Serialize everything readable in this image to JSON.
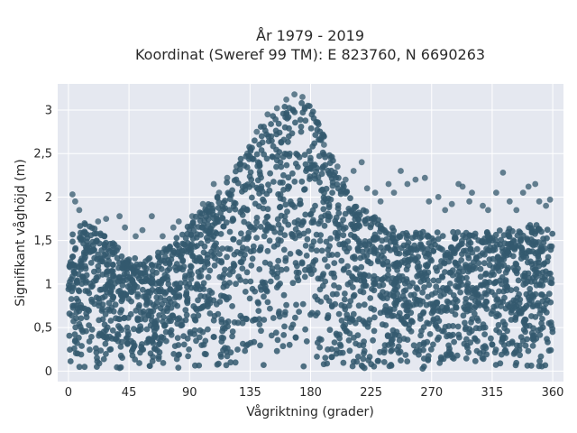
{
  "chart_data": {
    "type": "scatter",
    "title_lines": [
      "År 1979 - 2019",
      "Koordinat (Sweref 99 TM): E 823760, N 6690263"
    ],
    "xlabel": "Vågriktning (grader)",
    "ylabel": "Signifikant våghöjd (m)",
    "xlim": [
      -8,
      368
    ],
    "ylim": [
      -0.12,
      3.3
    ],
    "x_ticks": [
      {
        "value": 0,
        "label": "0"
      },
      {
        "value": 45,
        "label": "45"
      },
      {
        "value": 90,
        "label": "90"
      },
      {
        "value": 135,
        "label": "135"
      },
      {
        "value": 180,
        "label": "180"
      },
      {
        "value": 225,
        "label": "225"
      },
      {
        "value": 270,
        "label": "270"
      },
      {
        "value": 315,
        "label": "315"
      },
      {
        "value": 360,
        "label": "360"
      }
    ],
    "y_ticks": [
      {
        "value": 0,
        "label": "0"
      },
      {
        "value": 0.5,
        "label": "0,5"
      },
      {
        "value": 1,
        "label": "1"
      },
      {
        "value": 1.5,
        "label": "1,5"
      },
      {
        "value": 2,
        "label": "2"
      },
      {
        "value": 2.5,
        "label": "2,5"
      },
      {
        "value": 3,
        "label": "3"
      }
    ],
    "grid": true,
    "point_color": "#34596e",
    "plot_bg": "#e5e8f0",
    "upper_envelope": [
      {
        "x": 0,
        "y": 1.6
      },
      {
        "x": 10,
        "y": 1.7
      },
      {
        "x": 20,
        "y": 1.65
      },
      {
        "x": 30,
        "y": 1.55
      },
      {
        "x": 45,
        "y": 1.3
      },
      {
        "x": 60,
        "y": 1.3
      },
      {
        "x": 75,
        "y": 1.45
      },
      {
        "x": 90,
        "y": 1.7
      },
      {
        "x": 105,
        "y": 1.95
      },
      {
        "x": 120,
        "y": 2.25
      },
      {
        "x": 135,
        "y": 2.65
      },
      {
        "x": 150,
        "y": 2.95
      },
      {
        "x": 165,
        "y": 3.08
      },
      {
        "x": 172,
        "y": 3.2
      },
      {
        "x": 180,
        "y": 3.05
      },
      {
        "x": 190,
        "y": 2.7
      },
      {
        "x": 200,
        "y": 2.3
      },
      {
        "x": 212,
        "y": 1.95
      },
      {
        "x": 225,
        "y": 1.8
      },
      {
        "x": 240,
        "y": 1.65
      },
      {
        "x": 255,
        "y": 1.6
      },
      {
        "x": 270,
        "y": 1.6
      },
      {
        "x": 285,
        "y": 1.6
      },
      {
        "x": 300,
        "y": 1.6
      },
      {
        "x": 315,
        "y": 1.6
      },
      {
        "x": 330,
        "y": 1.65
      },
      {
        "x": 345,
        "y": 1.7
      },
      {
        "x": 360,
        "y": 1.65
      }
    ],
    "outlier_points": [
      [
        3,
        2.03
      ],
      [
        5,
        1.95
      ],
      [
        8,
        1.85
      ],
      [
        12,
        1.7
      ],
      [
        22,
        1.72
      ],
      [
        28,
        1.75
      ],
      [
        38,
        1.78
      ],
      [
        42,
        1.65
      ],
      [
        50,
        1.55
      ],
      [
        55,
        1.62
      ],
      [
        62,
        1.78
      ],
      [
        70,
        1.55
      ],
      [
        78,
        1.65
      ],
      [
        82,
        1.72
      ],
      [
        92,
        1.78
      ],
      [
        100,
        1.92
      ],
      [
        108,
        2.15
      ],
      [
        112,
        2.05
      ],
      [
        118,
        2.22
      ],
      [
        125,
        2.35
      ],
      [
        128,
        2.38
      ],
      [
        133,
        2.5
      ],
      [
        140,
        2.75
      ],
      [
        148,
        2.95
      ],
      [
        155,
        3.02
      ],
      [
        162,
        3.12
      ],
      [
        168,
        3.18
      ],
      [
        174,
        3.15
      ],
      [
        178,
        3.05
      ],
      [
        185,
        2.85
      ],
      [
        190,
        2.6
      ],
      [
        195,
        2.45
      ],
      [
        200,
        2.35
      ],
      [
        206,
        2.2
      ],
      [
        212,
        2.3
      ],
      [
        218,
        2.4
      ],
      [
        222,
        2.1
      ],
      [
        228,
        2.05
      ],
      [
        232,
        1.95
      ],
      [
        238,
        2.15
      ],
      [
        242,
        2.05
      ],
      [
        247,
        2.3
      ],
      [
        252,
        2.15
      ],
      [
        258,
        2.2
      ],
      [
        265,
        2.22
      ],
      [
        268,
        1.95
      ],
      [
        275,
        2.0
      ],
      [
        280,
        1.85
      ],
      [
        285,
        1.92
      ],
      [
        290,
        2.15
      ],
      [
        293,
        2.12
      ],
      [
        298,
        1.95
      ],
      [
        300,
        2.05
      ],
      [
        308,
        1.9
      ],
      [
        312,
        1.85
      ],
      [
        318,
        2.05
      ],
      [
        323,
        2.28
      ],
      [
        328,
        1.95
      ],
      [
        333,
        1.85
      ],
      [
        338,
        2.05
      ],
      [
        342,
        2.12
      ],
      [
        347,
        2.15
      ],
      [
        350,
        1.95
      ],
      [
        355,
        1.9
      ],
      [
        358,
        1.97
      ]
    ]
  }
}
